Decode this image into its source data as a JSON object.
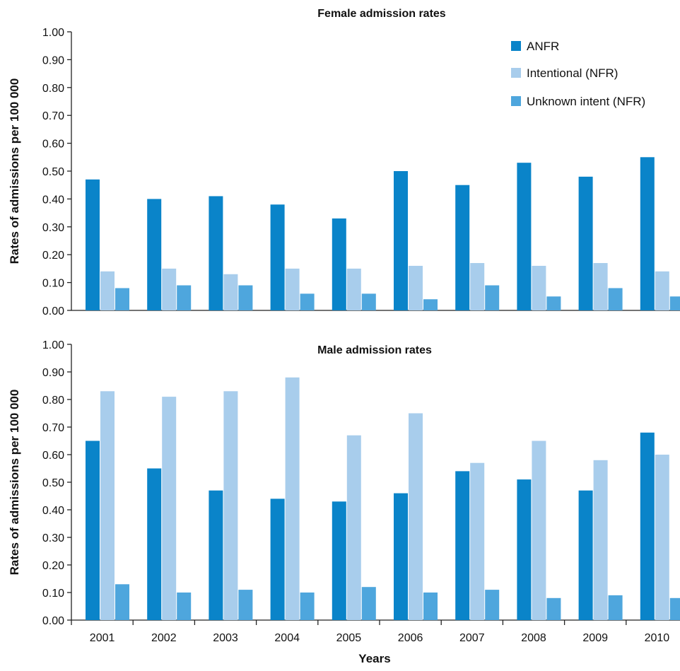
{
  "colors": {
    "ANFR": "#0a84c9",
    "Intentional (NFR)": "#a8cdec",
    "Unknown intent (NFR)": "#4ea6dd"
  },
  "chart_data": [
    {
      "type": "bar",
      "title": "Female admission rates",
      "ylabel": "Rates of admissions per 100 000",
      "xlabel": "",
      "ylim": [
        0,
        1.0
      ],
      "yticks": [
        "0.00",
        "0.10",
        "0.20",
        "0.30",
        "0.40",
        "0.50",
        "0.60",
        "0.70",
        "0.80",
        "0.90",
        "1.00"
      ],
      "categories": [
        "2001",
        "2002",
        "2003",
        "2004",
        "2005",
        "2006",
        "2007",
        "2008",
        "2009",
        "2010"
      ],
      "legend_position": "top-right",
      "legend": [
        "ANFR",
        "Intentional (NFR)",
        "Unknown intent (NFR)"
      ],
      "series": [
        {
          "name": "ANFR",
          "values": [
            0.47,
            0.4,
            0.41,
            0.38,
            0.33,
            0.5,
            0.45,
            0.53,
            0.48,
            0.55
          ]
        },
        {
          "name": "Intentional (NFR)",
          "values": [
            0.14,
            0.15,
            0.13,
            0.15,
            0.15,
            0.16,
            0.17,
            0.16,
            0.17,
            0.14
          ]
        },
        {
          "name": "Unknown intent (NFR)",
          "values": [
            0.08,
            0.09,
            0.09,
            0.06,
            0.06,
            0.04,
            0.09,
            0.05,
            0.08,
            0.05
          ]
        }
      ]
    },
    {
      "type": "bar",
      "title": "Male admission rates",
      "ylabel": "Rates of admissions per 100 000",
      "xlabel": "Years",
      "ylim": [
        0,
        1.0
      ],
      "yticks": [
        "0.00",
        "0.10",
        "0.20",
        "0.30",
        "0.40",
        "0.50",
        "0.60",
        "0.70",
        "0.80",
        "0.90",
        "1.00"
      ],
      "categories": [
        "2001",
        "2002",
        "2003",
        "2004",
        "2005",
        "2006",
        "2007",
        "2008",
        "2009",
        "2010"
      ],
      "series": [
        {
          "name": "ANFR",
          "values": [
            0.65,
            0.55,
            0.47,
            0.44,
            0.43,
            0.46,
            0.54,
            0.51,
            0.47,
            0.68
          ]
        },
        {
          "name": "Intentional (NFR)",
          "values": [
            0.83,
            0.81,
            0.83,
            0.88,
            0.67,
            0.75,
            0.57,
            0.65,
            0.58,
            0.6
          ]
        },
        {
          "name": "Unknown intent (NFR)",
          "values": [
            0.13,
            0.1,
            0.11,
            0.1,
            0.12,
            0.1,
            0.11,
            0.08,
            0.09,
            0.08
          ]
        }
      ]
    }
  ]
}
